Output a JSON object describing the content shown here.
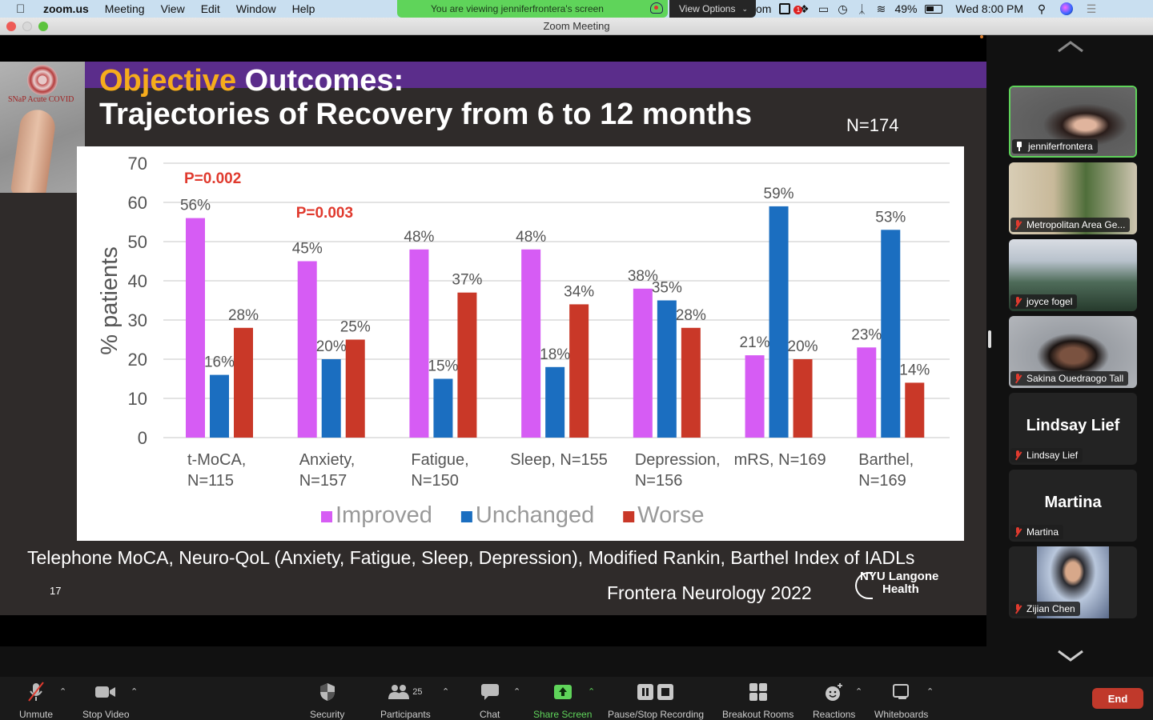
{
  "menubar": {
    "app_name": "zoom.us",
    "menus": [
      "Meeting",
      "View",
      "Edit",
      "Window",
      "Help"
    ],
    "viewing_banner": "You are viewing jenniferfrontera's screen",
    "view_options": "View Options",
    "clipped_app_text": "om",
    "battery": "49%",
    "clock": "Wed 8:00 PM",
    "icons": [
      "apple-icon",
      "drive-icon",
      "dropbox-icon",
      "airplay-icon",
      "time-machine-icon",
      "bluetooth-icon",
      "wifi-icon",
      "battery-icon",
      "search-icon",
      "siri-icon",
      "control-center-icon"
    ]
  },
  "window": {
    "title": "Zoom Meeting"
  },
  "slide": {
    "title_accent": "Objective",
    "title_rest": " Outcomes:",
    "subtitle": "Trajectories of Recovery from 6 to 12 months",
    "n_total": "N=174",
    "logo_text": "SNaP Acute COVID",
    "footnote": "Telephone MoCA, Neuro-QoL (Anxiety, Fatigue, Sleep, Depression), Modified Rankin, Barthel Index of IADLs",
    "slide_number": "17",
    "citation": "Frontera Neurology 2022",
    "nyu_logo_line1": "NYU Langone",
    "nyu_logo_line2": "Health"
  },
  "chart_data": {
    "type": "bar",
    "title": "",
    "xlabel": "",
    "ylabel": "% patients",
    "ylim": [
      0,
      70
    ],
    "yticks": [
      0,
      10,
      20,
      30,
      40,
      50,
      60,
      70
    ],
    "grid": true,
    "legend_position": "bottom-center",
    "categories": [
      [
        "t-MoCA,",
        "N=115"
      ],
      [
        "Anxiety,",
        "N=157"
      ],
      [
        "Fatigue,",
        "N=150"
      ],
      [
        "Sleep, N=155"
      ],
      [
        "Depression,",
        "N=156"
      ],
      [
        "mRS, N=169"
      ],
      [
        "Barthel,",
        "N=169"
      ]
    ],
    "series": [
      {
        "name": "Improved",
        "color": "#d65cf4",
        "values": [
          56,
          45,
          48,
          48,
          38,
          21,
          23
        ]
      },
      {
        "name": "Unchanged",
        "color": "#1b6ec0",
        "values": [
          16,
          20,
          15,
          18,
          35,
          59,
          53
        ]
      },
      {
        "name": "Worse",
        "color": "#c93828",
        "values": [
          28,
          25,
          37,
          34,
          28,
          20,
          14
        ]
      }
    ],
    "data_label_suffix": "%",
    "annotations": [
      {
        "text": "P=0.002",
        "category_index": 0,
        "color": "#e03a2e"
      },
      {
        "text": "P=0.003",
        "category_index": 1,
        "color": "#e03a2e"
      }
    ]
  },
  "gallery": {
    "participants": [
      {
        "name": "jenniferfrontera",
        "active": true,
        "video": true,
        "muted": false,
        "pinned_speaker": true
      },
      {
        "name": "Metropolitan Area Ge...",
        "active": false,
        "video": true,
        "muted": true
      },
      {
        "name": "joyce fogel",
        "active": false,
        "video": true,
        "muted": true
      },
      {
        "name": "Sakina Ouedraogo Tall",
        "active": false,
        "video": true,
        "muted": true
      },
      {
        "name": "Lindsay Lief",
        "active": false,
        "video": false,
        "muted": true,
        "display_name": "Lindsay Lief"
      },
      {
        "name": "Martina",
        "active": false,
        "video": false,
        "muted": true,
        "display_name": "Martina"
      },
      {
        "name": "Zijian Chen",
        "active": false,
        "video": true,
        "muted": true
      }
    ]
  },
  "toolbar": {
    "unmute": "Unmute",
    "stop_video": "Stop Video",
    "security": "Security",
    "participants": "Participants",
    "participants_count": "25",
    "chat": "Chat",
    "share_screen": "Share Screen",
    "recording": "Pause/Stop Recording",
    "breakout_rooms": "Breakout Rooms",
    "reactions": "Reactions",
    "whiteboards": "Whiteboards",
    "end": "End",
    "share_color": "#5fd45a",
    "end_color": "#c0392b"
  }
}
